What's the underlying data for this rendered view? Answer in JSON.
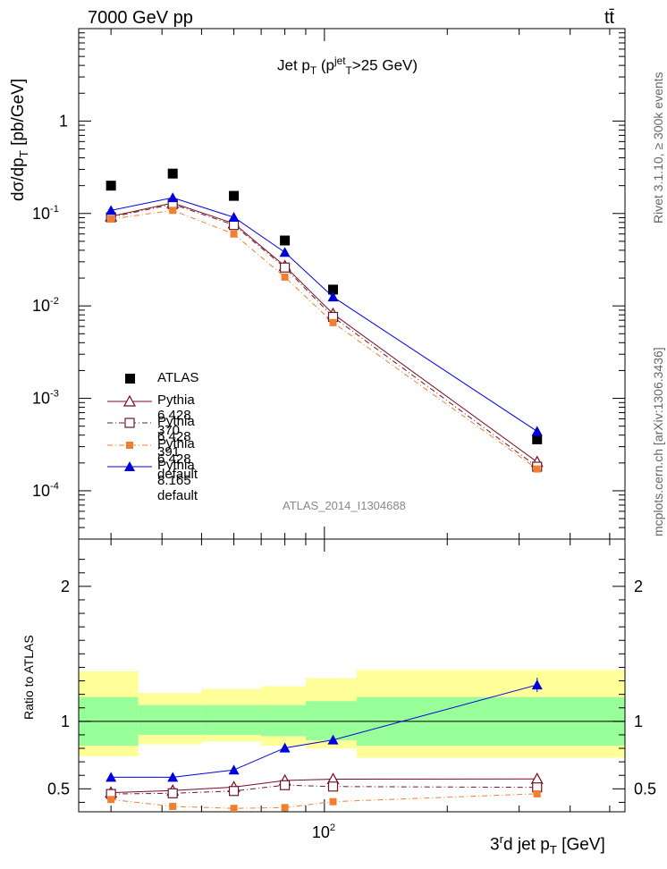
{
  "chart_data": [
    {
      "type": "line",
      "scale": "log-log",
      "energy_label": "7000 GeV pp",
      "process_label": "tt̄",
      "title": "Jet p_T (p_T^jet>25 GeV)",
      "title_main": "Jet p",
      "title_sub": "T",
      "title_paren_open": " (p",
      "title_sup": "jet",
      "title_sub2": "T",
      "title_paren_close": ">25 GeV)",
      "ylabel_main": "dσ/dp",
      "ylabel_sub": "T",
      "ylabel_unit": " [pb/GeV]",
      "ylim": [
        3e-05,
        10
      ],
      "y_ticks": [
        {
          "value": 0.0001,
          "base": "10",
          "exp": "-4"
        },
        {
          "value": 0.001,
          "base": "10",
          "exp": "-3"
        },
        {
          "value": 0.01,
          "base": "10",
          "exp": "-2"
        },
        {
          "value": 0.1,
          "base": "10",
          "exp": "-1"
        },
        {
          "value": 1,
          "base": "1",
          "exp": ""
        }
      ],
      "x": [
        30,
        42.5,
        60,
        80,
        105,
        332
      ],
      "series": [
        {
          "name": "ATLAS",
          "color": "#000000",
          "marker": "square",
          "line": "none",
          "values": [
            0.2,
            0.27,
            0.155,
            0.051,
            0.015,
            0.00036
          ]
        },
        {
          "name": "Pythia 6.428 370",
          "color": "#7a0a1f",
          "marker": "open-triangle",
          "line": "solid",
          "values": [
            0.093,
            0.13,
            0.078,
            0.027,
            0.0082,
            0.000205
          ]
        },
        {
          "name": "Pythia 6.428 391",
          "color": "#6b1a2a",
          "marker": "open-square",
          "line": "dashdot",
          "values": [
            0.091,
            0.126,
            0.075,
            0.026,
            0.0076,
            0.000182
          ]
        },
        {
          "name": "Pythia 6.428 default",
          "color": "#f08030",
          "marker": "filled-square",
          "line": "dashdot",
          "values": [
            0.087,
            0.108,
            0.06,
            0.0205,
            0.0066,
            0.000172
          ]
        },
        {
          "name": "Pythia 8.165 default",
          "color": "#0000dd",
          "marker": "filled-triangle",
          "line": "solid",
          "values": [
            0.108,
            0.148,
            0.091,
            0.038,
            0.0125,
            0.00044
          ]
        }
      ],
      "analysis_label": "ATLAS_2014_I1304688",
      "side_label_top": "Rivet 3.1.10, ≥ 300k events",
      "side_label_bottom": "mcplots.cern.ch [arXiv:1306.3436]"
    },
    {
      "type": "line",
      "scale": "log-x",
      "ylabel": "Ratio to ATLAS",
      "ylim": [
        0.33,
        2.35
      ],
      "y_ticks": [
        0.5,
        1,
        2
      ],
      "y_tick_labels": [
        "0.5",
        "1",
        "2"
      ],
      "xlabel_main": "3",
      "xlabel_sup": "r",
      "xlabel_rest": "d jet p",
      "xlabel_sub": "T",
      "xlabel_unit": " [GeV]",
      "x_tick_base": "10",
      "x_tick_exp": "2",
      "bin_edges": [
        25,
        35,
        50,
        70,
        90,
        120,
        545
      ],
      "band_inner": {
        "color": "#99ff99",
        "low": [
          0.82,
          0.9,
          0.9,
          0.89,
          0.86,
          0.82
        ],
        "high": [
          1.18,
          1.12,
          1.12,
          1.12,
          1.15,
          1.18
        ]
      },
      "band_outer": {
        "color": "#ffff99",
        "low": [
          0.74,
          0.83,
          0.85,
          0.82,
          0.8,
          0.73
        ],
        "high": [
          1.37,
          1.21,
          1.24,
          1.26,
          1.32,
          1.38
        ]
      },
      "x": [
        30,
        42.5,
        60,
        80,
        105,
        332
      ],
      "series": [
        {
          "name": "Pythia 6.428 370",
          "color": "#7a0a1f",
          "marker": "open-triangle",
          "line": "solid",
          "values": [
            0.472,
            0.487,
            0.513,
            0.562,
            0.572,
            0.573
          ]
        },
        {
          "name": "Pythia 6.428 391",
          "color": "#6b1a2a",
          "marker": "open-square",
          "line": "dashdot",
          "values": [
            0.462,
            0.467,
            0.484,
            0.527,
            0.517,
            0.511
          ]
        },
        {
          "name": "Pythia 6.428 default",
          "color": "#f08030",
          "marker": "filled-square",
          "line": "dashdot",
          "values": [
            0.421,
            0.37,
            0.355,
            0.361,
            0.405,
            0.463
          ]
        },
        {
          "name": "Pythia 8.165 default",
          "color": "#0000dd",
          "marker": "filled-triangle",
          "line": "solid",
          "values": [
            0.586,
            0.586,
            0.64,
            0.803,
            0.862,
            1.27
          ]
        }
      ]
    }
  ]
}
